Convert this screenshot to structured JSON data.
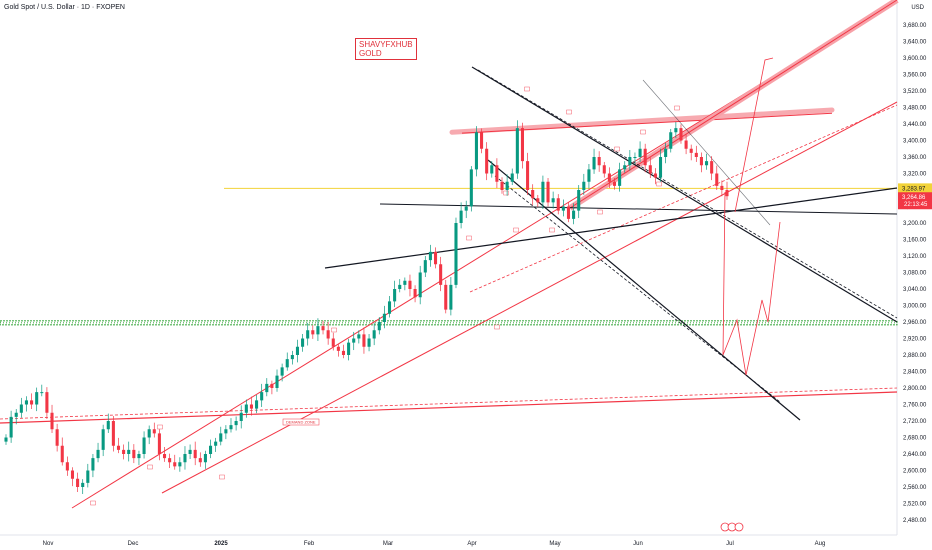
{
  "header": {
    "symbol_line": "Gold Spot / U.S. Dollar · 1D · FXOPEN"
  },
  "watermark": {
    "line1": "SHAVYFXHUB",
    "line2": "GOLD"
  },
  "currency": "USD",
  "price_badges": {
    "level": {
      "value": "3,283.97",
      "color": "#f2d338"
    },
    "last": {
      "value": "3,264.86",
      "time": "22:13:45",
      "color": "#f23645"
    }
  },
  "zone_label": "DEMAND ZONE",
  "colors": {
    "up": "#089981",
    "down": "#f23645",
    "channel": "#f23645",
    "trend": "#131722",
    "support_zone": "#4caf50",
    "level_line": "#f2d338",
    "resistance_band": "#f7a1a8"
  },
  "chart_data": {
    "type": "candlestick",
    "title": "Gold Spot / U.S. Dollar · 1D · FXOPEN",
    "ylabel": "USD",
    "ylim": [
      2460,
      3720
    ],
    "y_ticks": [
      "3,680.00",
      "3,640.00",
      "3,600.00",
      "3,560.00",
      "3,520.00",
      "3,480.00",
      "3,440.00",
      "3,400.00",
      "3,360.00",
      "3,320.00",
      "3,280.00",
      "3,240.00",
      "3,200.00",
      "3,160.00",
      "3,120.00",
      "3,080.00",
      "3,040.00",
      "3,000.00",
      "2,960.00",
      "2,920.00",
      "2,880.00",
      "2,840.00",
      "2,800.00",
      "2,760.00",
      "2,720.00",
      "2,680.00",
      "2,640.00",
      "2,600.00",
      "2,560.00",
      "2,520.00",
      "2,480.00"
    ],
    "x_ticks": [
      "Nov",
      "Dec",
      "2025",
      "Feb",
      "Mar",
      "Apr",
      "May",
      "Jun",
      "Jul",
      "Aug"
    ],
    "horizontal_levels": [
      {
        "name": "level-line",
        "price": 3283.97
      },
      {
        "name": "support-zone",
        "price": 2958
      }
    ],
    "series": [
      {
        "name": "daily_close",
        "values": [
          2680,
          2730,
          2740,
          2760,
          2770,
          2760,
          2790,
          2790,
          2740,
          2700,
          2660,
          2620,
          2600,
          2580,
          2560,
          2570,
          2600,
          2630,
          2650,
          2700,
          2720,
          2660,
          2650,
          2640,
          2650,
          2630,
          2640,
          2680,
          2700,
          2690,
          2640,
          2630,
          2620,
          2610,
          2620,
          2640,
          2650,
          2630,
          2620,
          2640,
          2660,
          2670,
          2690,
          2700,
          2710,
          2720,
          2740,
          2760,
          2750,
          2770,
          2790,
          2810,
          2800,
          2830,
          2850,
          2870,
          2880,
          2900,
          2920,
          2940,
          2930,
          2950,
          2940,
          2920,
          2900,
          2890,
          2880,
          2910,
          2920,
          2930,
          2900,
          2920,
          2940,
          2960,
          2980,
          3010,
          3040,
          3050,
          3060,
          3040,
          3020,
          3080,
          3110,
          3130,
          3100,
          3050,
          2990,
          3050,
          3200,
          3230,
          3240,
          3330,
          3420,
          3380,
          3320,
          3340,
          3300,
          3280,
          3300,
          3320,
          3430,
          3350,
          3280,
          3260,
          3250,
          3300,
          3250,
          3260,
          3230,
          3240,
          3210,
          3230,
          3280,
          3300,
          3330,
          3360,
          3340,
          3320,
          3300,
          3290,
          3330,
          3340,
          3360,
          3360,
          3380,
          3340,
          3320,
          3310,
          3360,
          3380,
          3420,
          3430,
          3400,
          3380,
          3370,
          3360,
          3340,
          3350,
          3320,
          3290,
          3280,
          3265
        ]
      }
    ],
    "annotations": [
      "DEMAND ZONE"
    ]
  }
}
